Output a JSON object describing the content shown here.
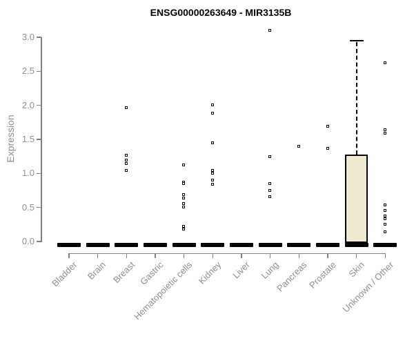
{
  "chart_data": {
    "type": "boxplot",
    "title": "ENSG00000263649 - MIR3135B",
    "xlabel": "",
    "ylabel": "Expression",
    "ylim": [
      0,
      3.0
    ],
    "ytick_labels": [
      "0.0",
      "0.5",
      "1.0",
      "1.5",
      "2.0",
      "2.5",
      "3.0"
    ],
    "grid": false,
    "legend": "none",
    "categories": [
      "Bladder",
      "Brain",
      "Breast",
      "Gastric",
      "Hematopoietic cells",
      "Kidney",
      "Liver",
      "Lung",
      "Pancreas",
      "Prostate",
      "Skin",
      "Unknown / Other"
    ],
    "boxes": [
      {
        "category": "Bladder",
        "q1": 0,
        "median": 0,
        "q3": 0,
        "whisker_low": 0,
        "whisker_high": 0,
        "outliers": []
      },
      {
        "category": "Brain",
        "q1": 0,
        "median": 0,
        "q3": 0,
        "whisker_low": 0,
        "whisker_high": 0,
        "outliers": []
      },
      {
        "category": "Breast",
        "q1": 0,
        "median": 0,
        "q3": 0,
        "whisker_low": 0,
        "whisker_high": 0,
        "outliers": [
          1.96,
          1.26,
          1.19,
          1.14,
          1.04
        ]
      },
      {
        "category": "Gastric",
        "q1": 0,
        "median": 0,
        "q3": 0,
        "whisker_low": 0,
        "whisker_high": 0,
        "outliers": []
      },
      {
        "category": "Hematopoietic cells",
        "q1": 0,
        "median": 0,
        "q3": 0,
        "whisker_low": 0,
        "whisker_high": 0,
        "outliers": [
          1.12,
          0.87,
          0.85,
          0.68,
          0.63,
          0.55,
          0.5,
          0.22,
          0.18
        ]
      },
      {
        "category": "Kidney",
        "q1": 0,
        "median": 0,
        "q3": 0,
        "whisker_low": 0,
        "whisker_high": 0,
        "outliers": [
          2.0,
          1.88,
          1.44,
          1.04,
          1.0,
          0.9,
          0.84
        ]
      },
      {
        "category": "Liver",
        "q1": 0,
        "median": 0,
        "q3": 0,
        "whisker_low": 0,
        "whisker_high": 0,
        "outliers": []
      },
      {
        "category": "Lung",
        "q1": 0,
        "median": 0,
        "q3": 0,
        "whisker_low": 0,
        "whisker_high": 0,
        "outliers": [
          3.1,
          1.24,
          0.85,
          0.74,
          0.65
        ]
      },
      {
        "category": "Pancreas",
        "q1": 0,
        "median": 0,
        "q3": 0,
        "whisker_low": 0,
        "whisker_high": 0,
        "outliers": [
          1.39
        ]
      },
      {
        "category": "Prostate",
        "q1": 0,
        "median": 0,
        "q3": 0,
        "whisker_low": 0,
        "whisker_high": 0,
        "outliers": [
          1.69,
          1.36
        ]
      },
      {
        "category": "Skin",
        "q1": 0,
        "median": 0,
        "q3": 1.28,
        "whisker_low": 0,
        "whisker_high": 2.95,
        "outliers": [],
        "filled": true
      },
      {
        "category": "Unknown / Other",
        "q1": 0,
        "median": 0,
        "q3": 0,
        "whisker_low": 0,
        "whisker_high": 0,
        "outliers": [
          2.62,
          1.64,
          1.59,
          0.53,
          0.45,
          0.37,
          0.33,
          0.25,
          0.14
        ]
      }
    ],
    "colors": {
      "box_fill": "#EFE9CF",
      "box_stroke": "#000000",
      "zero_bar": "#000000",
      "outlier": "#000000",
      "axis": "#7f7f7f",
      "tick_label": "#8f8f8f",
      "title": "#000000"
    }
  }
}
